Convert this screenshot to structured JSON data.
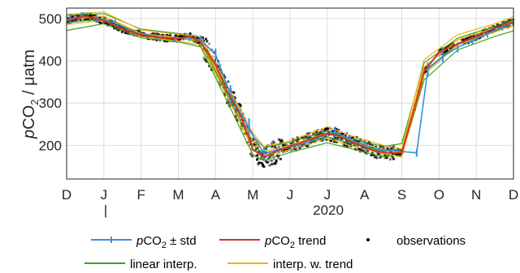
{
  "chart_data": {
    "type": "line",
    "ylabel_parts": {
      "var": "p",
      "sub_base": "CO",
      "sub": "2",
      "unit": " / μatm"
    },
    "ylim": [
      120,
      525
    ],
    "yticks": [
      200,
      300,
      400,
      500
    ],
    "xlim": [
      0,
      12
    ],
    "xtick_labels": [
      "D",
      "J",
      "F",
      "M",
      "A",
      "M",
      "J",
      "J",
      "A",
      "S",
      "O",
      "N",
      "D"
    ],
    "year_label": "2020",
    "year_marker": "|",
    "grid": true,
    "colors": {
      "std": "#3a8fe0",
      "trend": "#d8321e",
      "linear": "#3aa41a",
      "interp_trend": "#f3b21a",
      "obs": "#000000"
    },
    "legend": [
      {
        "key": "std",
        "italic": "p",
        "base": "CO",
        "sub": "2",
        "suffix": " ± std"
      },
      {
        "key": "trend",
        "italic": "p",
        "base": "CO",
        "sub": "2",
        "suffix": " trend"
      },
      {
        "key": "obs",
        "text": "observations"
      },
      {
        "key": "linear",
        "text": "linear interp."
      },
      {
        "key": "interp_trend",
        "text": "interp. w. trend"
      }
    ],
    "series": [
      {
        "key": "trend",
        "x": [
          0,
          0.3,
          0.5,
          1.0,
          1.5,
          2.0,
          2.5,
          3.0,
          3.3,
          3.6,
          4.0,
          4.3,
          4.7,
          5.0,
          5.3,
          5.7,
          6.0,
          6.3,
          6.6,
          7.0,
          7.3,
          7.6,
          8.0,
          8.3,
          8.6,
          9.0,
          9.3,
          9.6,
          10.0,
          10.5,
          11.0,
          11.5,
          12.0
        ],
        "y": [
          495,
          502,
          506,
          495,
          475,
          462,
          455,
          453,
          458,
          445,
          390,
          330,
          265,
          190,
          172,
          188,
          198,
          206,
          216,
          228,
          222,
          210,
          196,
          186,
          182,
          182,
          275,
          375,
          420,
          440,
          458,
          478,
          492
        ]
      },
      {
        "key": "std",
        "x": [
          0.1,
          0.4,
          0.8,
          1.3,
          1.8,
          2.4,
          2.9,
          3.3,
          3.6,
          4.0,
          4.4,
          4.9,
          5.3,
          5.7,
          6.1,
          6.5,
          6.9,
          7.2,
          7.6,
          8.0,
          8.4,
          9.4,
          9.7,
          10.1,
          10.5,
          10.9,
          11.3,
          11.7,
          12.0
        ],
        "y": [
          500,
          505,
          502,
          490,
          468,
          458,
          452,
          455,
          450,
          415,
          320,
          240,
          180,
          190,
          198,
          208,
          222,
          232,
          214,
          200,
          190,
          182,
          380,
          410,
          432,
          448,
          465,
          480,
          490
        ],
        "err": [
          12,
          10,
          9,
          8,
          6,
          6,
          6,
          8,
          10,
          14,
          22,
          24,
          16,
          10,
          8,
          9,
          12,
          12,
          10,
          10,
          10,
          9,
          16,
          14,
          12,
          10,
          10,
          8,
          8
        ]
      },
      {
        "key": "linear",
        "x": [
          0,
          1.0,
          2.0,
          3.0,
          3.6,
          5.0,
          5.3,
          6.0,
          7.0,
          7.6,
          8.5,
          9.0,
          9.6,
          10.5,
          11.5,
          12.0
        ],
        "y": [
          490,
          500,
          465,
          455,
          445,
          200,
          180,
          195,
          220,
          205,
          185,
          190,
          375,
          440,
          470,
          485
        ],
        "band": [
          18,
          12,
          10,
          10,
          12,
          22,
          15,
          12,
          14,
          12,
          12,
          14,
          20,
          14,
          12,
          14
        ]
      },
      {
        "key": "interp_trend",
        "x": [
          0,
          1.0,
          2.0,
          3.0,
          3.6,
          4.3,
          5.0,
          5.3,
          6.0,
          7.0,
          7.6,
          8.5,
          9.0,
          9.6,
          10.5,
          11.5,
          12.0
        ],
        "y": [
          498,
          506,
          465,
          455,
          448,
          330,
          210,
          185,
          200,
          230,
          212,
          190,
          182,
          385,
          450,
          478,
          495
        ],
        "band": [
          12,
          10,
          8,
          8,
          10,
          14,
          20,
          12,
          10,
          14,
          12,
          10,
          10,
          18,
          12,
          10,
          10
        ]
      }
    ]
  }
}
